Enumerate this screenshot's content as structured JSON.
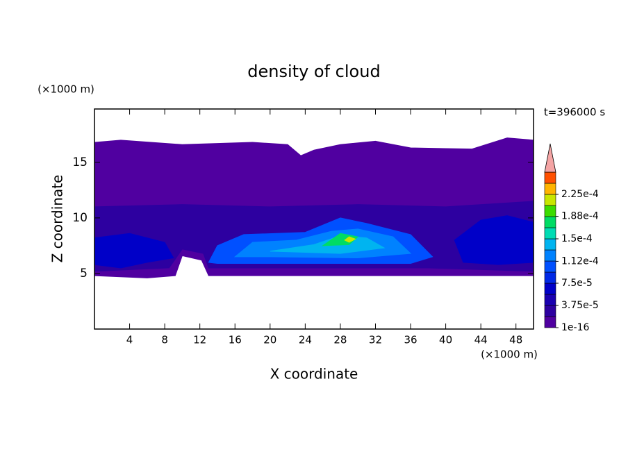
{
  "chart_data": {
    "type": "contour",
    "title": "density of cloud",
    "xlabel": "X coordinate",
    "ylabel": "Z coordinate",
    "x_unit": "(×1000 m)",
    "y_unit": "(×1000 m)",
    "annotation": "t=396000 s",
    "xlim": [
      0,
      50
    ],
    "ylim": [
      0,
      19.8
    ],
    "xticks": [
      4,
      8,
      12,
      16,
      20,
      24,
      28,
      32,
      36,
      40,
      44,
      48
    ],
    "yticks": [
      5,
      10,
      15
    ],
    "levels": [
      1e-16,
      1.875e-05,
      3.75e-05,
      5.625e-05,
      7.5e-05,
      9.375e-05,
      0.0001125,
      0.00013125,
      0.00015,
      0.00016875,
      0.0001875,
      0.00020625,
      0.000225,
      0.00024375,
      0.0002625
    ],
    "colors": [
      "#5000a0",
      "#2d00a0",
      "#1a00b0",
      "#0000c8",
      "#0028e6",
      "#0050ff",
      "#0082ff",
      "#00b4f0",
      "#00dcb4",
      "#00dc64",
      "#3cdc00",
      "#c8e600",
      "#ffb400",
      "#ff5000"
    ],
    "extend_color": "#f4a4a4",
    "colorbar_ticks": [
      1e-16,
      {
        "value": 3.75e-05,
        "label": "3.75e-5"
      },
      {
        "value": 7.5e-05,
        "label": "7.5e-5"
      },
      {
        "value": 0.000112,
        "label": "1.12e-4"
      },
      {
        "value": 0.00015,
        "label": "1.5e-4"
      },
      {
        "value": 0.000188,
        "label": "1.88e-4"
      },
      {
        "value": 0.000225,
        "label": "2.25e-4"
      }
    ],
    "regions": [
      {
        "min": 1e-16,
        "points": [
          [
            0,
            4.8
          ],
          [
            0,
            16.8
          ],
          [
            3,
            17
          ],
          [
            10,
            16.6
          ],
          [
            18,
            16.8
          ],
          [
            22,
            16.6
          ],
          [
            23.5,
            15.6
          ],
          [
            25,
            16.1
          ],
          [
            28,
            16.6
          ],
          [
            32,
            16.9
          ],
          [
            36,
            16.3
          ],
          [
            43,
            16.2
          ],
          [
            47,
            17.2
          ],
          [
            50,
            17
          ],
          [
            50,
            4.8
          ],
          [
            40,
            4.8
          ],
          [
            13,
            4.8
          ],
          [
            12.2,
            6.2
          ],
          [
            10,
            6.6
          ],
          [
            9.2,
            4.8
          ],
          [
            6,
            4.6
          ]
        ]
      },
      {
        "min": 1.875e-05,
        "points": [
          [
            0,
            5.2
          ],
          [
            0,
            11
          ],
          [
            10,
            11.2
          ],
          [
            20,
            11
          ],
          [
            30,
            11.2
          ],
          [
            40,
            11
          ],
          [
            50,
            11.5
          ],
          [
            50,
            5.2
          ],
          [
            38,
            5.5
          ],
          [
            13,
            5.5
          ],
          [
            12.4,
            6.8
          ],
          [
            10,
            7.2
          ],
          [
            8.5,
            5.5
          ]
        ]
      },
      {
        "min": 5.625e-05,
        "points": [
          [
            0,
            5.8
          ],
          [
            0,
            8.2
          ],
          [
            4,
            8.6
          ],
          [
            8,
            7.8
          ],
          [
            9,
            6.4
          ],
          [
            6,
            6
          ],
          [
            3,
            5.5
          ]
        ]
      },
      {
        "min": 5.625e-05,
        "points": [
          [
            42,
            6
          ],
          [
            41,
            8
          ],
          [
            44,
            9.8
          ],
          [
            47,
            10.2
          ],
          [
            50,
            9.6
          ],
          [
            50,
            6
          ],
          [
            46,
            5.8
          ]
        ]
      },
      {
        "min": 9.375e-05,
        "points": [
          [
            13,
            6
          ],
          [
            14,
            7.5
          ],
          [
            17,
            8.5
          ],
          [
            24,
            8.7
          ],
          [
            28,
            10
          ],
          [
            31,
            9.5
          ],
          [
            36,
            8.5
          ],
          [
            38.5,
            6.5
          ],
          [
            36,
            5.9
          ],
          [
            14,
            5.9
          ]
        ]
      },
      {
        "min": 0.0001125,
        "points": [
          [
            16,
            6.5
          ],
          [
            18,
            7.8
          ],
          [
            23,
            8
          ],
          [
            27,
            8.8
          ],
          [
            30,
            9
          ],
          [
            34,
            8.3
          ],
          [
            36,
            6.8
          ],
          [
            30,
            6.4
          ],
          [
            20,
            6.5
          ]
        ]
      },
      {
        "min": 0.00013125,
        "points": [
          [
            20,
            7
          ],
          [
            25,
            7.6
          ],
          [
            28,
            8.4
          ],
          [
            31,
            8.2
          ],
          [
            33,
            7.3
          ],
          [
            28,
            6.8
          ]
        ]
      },
      {
        "min": 0.00016875,
        "points": [
          [
            26,
            7.5
          ],
          [
            28,
            8.6
          ],
          [
            30,
            8.3
          ],
          [
            29,
            7.6
          ]
        ]
      },
      {
        "min": 0.00020625,
        "points": [
          [
            28.5,
            8
          ],
          [
            29,
            8.3
          ],
          [
            29.7,
            8.1
          ],
          [
            29,
            7.8
          ]
        ]
      }
    ]
  }
}
